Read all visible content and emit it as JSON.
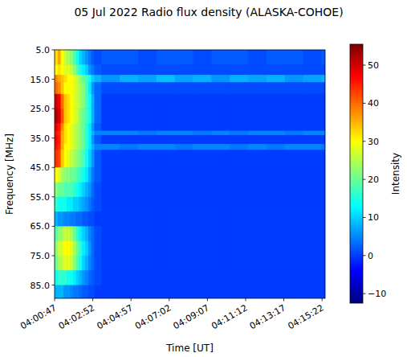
{
  "chart_data": {
    "type": "heatmap",
    "title": "05 Jul 2022 Radio flux density (ALASKA-COHOE)",
    "x_label": "Time [UT]",
    "y_label": "Frequency [MHz]",
    "color": "jet",
    "xlim": [
      14447,
      15332
    ],
    "ylim": [
      5,
      89.5
    ],
    "xticks": [
      {
        "value": 14447,
        "label": "04:00:47"
      },
      {
        "value": 14572,
        "label": "04:02:52"
      },
      {
        "value": 14697,
        "label": "04:04:57"
      },
      {
        "value": 14822,
        "label": "04:07:02"
      },
      {
        "value": 14947,
        "label": "04:09:07"
      },
      {
        "value": 15072,
        "label": "04:11:12"
      },
      {
        "value": 15197,
        "label": "04:13:17"
      },
      {
        "value": 15322,
        "label": "04:15:22"
      }
    ],
    "yticks": [
      {
        "value": 5,
        "label": "5.0"
      },
      {
        "value": 15,
        "label": "15.0"
      },
      {
        "value": 25,
        "label": "25.0"
      },
      {
        "value": 35,
        "label": "35.0"
      },
      {
        "value": 45,
        "label": "45.0"
      },
      {
        "value": 55,
        "label": "55.0"
      },
      {
        "value": 65,
        "label": "65.0"
      },
      {
        "value": 75,
        "label": "75.0"
      },
      {
        "value": 85,
        "label": "85.0"
      }
    ],
    "x": [
      14447,
      14457,
      14467,
      14477,
      14487,
      14497,
      14507,
      14517,
      14527,
      14537,
      14547,
      14557,
      14567,
      14577,
      14600,
      14660,
      14720,
      14780,
      14840,
      14900,
      14960,
      15020,
      15080,
      15140,
      15200,
      15260,
      15320
    ],
    "y": [
      5,
      10,
      13.5,
      16,
      20,
      25,
      30,
      32.5,
      34,
      37,
      39,
      45,
      50,
      55,
      60,
      65,
      70,
      75,
      80,
      85
    ],
    "values": [
      [
        32,
        30,
        38,
        40,
        50,
        52,
        48,
        46,
        47,
        46,
        44,
        30,
        22,
        16,
        8,
        18,
        22,
        20,
        14,
        8
      ],
      [
        36,
        32,
        36,
        38,
        48,
        50,
        46,
        44,
        45,
        44,
        42,
        28,
        20,
        14,
        6,
        22,
        26,
        24,
        16,
        8
      ],
      [
        30,
        30,
        34,
        34,
        40,
        42,
        38,
        36,
        36,
        36,
        34,
        24,
        20,
        14,
        6,
        24,
        28,
        26,
        16,
        8
      ],
      [
        26,
        28,
        32,
        30,
        34,
        34,
        32,
        32,
        32,
        30,
        30,
        22,
        18,
        14,
        5,
        26,
        30,
        28,
        16,
        6
      ],
      [
        24,
        28,
        30,
        30,
        32,
        32,
        30,
        30,
        30,
        30,
        28,
        22,
        18,
        12,
        5,
        26,
        30,
        28,
        14,
        6
      ],
      [
        22,
        26,
        30,
        30,
        30,
        30,
        28,
        28,
        28,
        28,
        26,
        20,
        18,
        12,
        4,
        24,
        28,
        26,
        14,
        5
      ],
      [
        18,
        22,
        28,
        28,
        28,
        28,
        26,
        26,
        26,
        26,
        24,
        20,
        16,
        10,
        4,
        20,
        24,
        22,
        12,
        4
      ],
      [
        14,
        18,
        26,
        26,
        26,
        26,
        24,
        24,
        24,
        24,
        22,
        18,
        14,
        10,
        3,
        16,
        20,
        18,
        10,
        4
      ],
      [
        10,
        14,
        22,
        24,
        24,
        22,
        22,
        22,
        22,
        22,
        20,
        16,
        12,
        8,
        3,
        12,
        16,
        14,
        8,
        3
      ],
      [
        8,
        12,
        20,
        22,
        22,
        20,
        20,
        20,
        20,
        20,
        18,
        14,
        10,
        7,
        2,
        10,
        12,
        10,
        6,
        2
      ],
      [
        6,
        10,
        18,
        18,
        18,
        18,
        16,
        16,
        16,
        16,
        14,
        12,
        8,
        6,
        2,
        8,
        10,
        8,
        5,
        2
      ],
      [
        4,
        6,
        14,
        12,
        14,
        14,
        12,
        12,
        12,
        12,
        10,
        8,
        6,
        4,
        1,
        5,
        6,
        5,
        3,
        1
      ],
      [
        2,
        4,
        10,
        6,
        8,
        8,
        6,
        8,
        6,
        8,
        6,
        4,
        3,
        2,
        1,
        3,
        3,
        3,
        2,
        1
      ],
      [
        1,
        2,
        8,
        3,
        3,
        3,
        2,
        5,
        2,
        5,
        2,
        2,
        1,
        1,
        0,
        1,
        1,
        1,
        1,
        0
      ],
      [
        2,
        1,
        6,
        1,
        0,
        0,
        0,
        5,
        0,
        5,
        0,
        0,
        0,
        0,
        0,
        0,
        0,
        0,
        0,
        0
      ],
      [
        2,
        1,
        8,
        1,
        0,
        0,
        0,
        5,
        0,
        4,
        0,
        0,
        0,
        0,
        0,
        0,
        0,
        0,
        0,
        0
      ],
      [
        1,
        1,
        7,
        1,
        0,
        0,
        0,
        4,
        0,
        5,
        0,
        0,
        0,
        0,
        0,
        0,
        0,
        0,
        0,
        0
      ],
      [
        2,
        1,
        9,
        1,
        0,
        0,
        0,
        5,
        0,
        5,
        0,
        0,
        0,
        0,
        0,
        0,
        0,
        0,
        0,
        0
      ],
      [
        2,
        1,
        7,
        1,
        0,
        0,
        0,
        5,
        0,
        4,
        0,
        0,
        0,
        0,
        0,
        0,
        0,
        0,
        0,
        0
      ],
      [
        1,
        1,
        8,
        1,
        0,
        0,
        0,
        4,
        0,
        5,
        0,
        0,
        0,
        0,
        0,
        0,
        0,
        0,
        0,
        0
      ],
      [
        2,
        1,
        6,
        1,
        0,
        0,
        0,
        5,
        0,
        5,
        0,
        0,
        0,
        0,
        0,
        0,
        0,
        0,
        0,
        0
      ],
      [
        2,
        1,
        8,
        1,
        0,
        0,
        0,
        4,
        0,
        4,
        0,
        0,
        0,
        0,
        0,
        0,
        0,
        0,
        0,
        0
      ],
      [
        1,
        1,
        7,
        1,
        0,
        0,
        0,
        5,
        0,
        5,
        0,
        0,
        0,
        0,
        0,
        0,
        0,
        0,
        0,
        0
      ],
      [
        2,
        1,
        8,
        1,
        0,
        0,
        0,
        5,
        0,
        4,
        0,
        0,
        0,
        0,
        0,
        0,
        0,
        0,
        0,
        0
      ],
      [
        2,
        1,
        6,
        1,
        0,
        0,
        0,
        4,
        0,
        5,
        0,
        0,
        0,
        0,
        0,
        0,
        0,
        0,
        0,
        0
      ],
      [
        1,
        1,
        7,
        1,
        0,
        0,
        0,
        5,
        0,
        5,
        0,
        0,
        0,
        0,
        0,
        0,
        0,
        0,
        0,
        0
      ],
      [
        2,
        1,
        8,
        1,
        0,
        0,
        0,
        5,
        0,
        4,
        0,
        0,
        0,
        0,
        0,
        0,
        0,
        0,
        0,
        0
      ]
    ],
    "colorbar": {
      "label": "Intensity",
      "range": [
        -12.5,
        55.5
      ],
      "ticks": [
        {
          "value": -10,
          "label": "−10"
        },
        0,
        10,
        20,
        30,
        40,
        50
      ]
    }
  }
}
